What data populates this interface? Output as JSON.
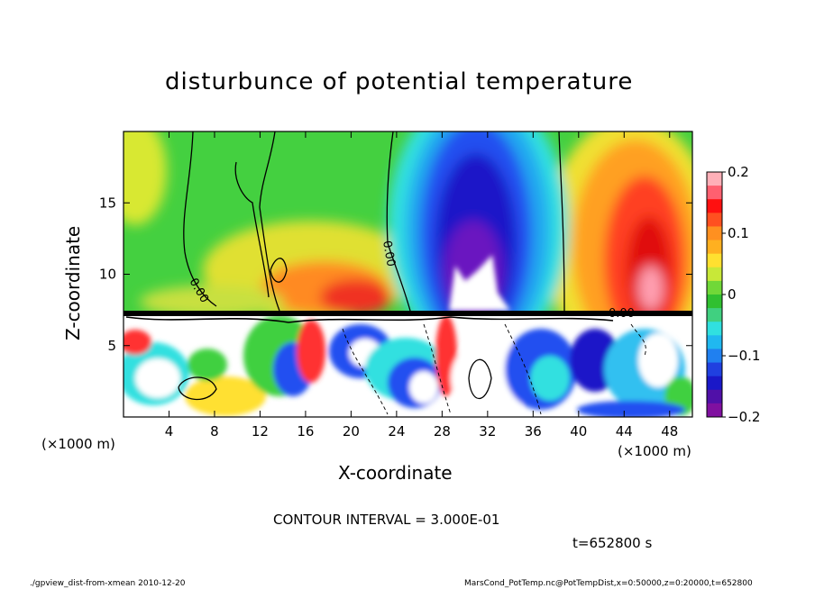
{
  "chart_data": {
    "type": "heatmap",
    "title": "disturbunce of potential temperature",
    "xlabel": "X-coordinate",
    "ylabel": "Z-coordinate",
    "x_unit": "(×1000 m)",
    "z_unit": "(×1000 m)",
    "xlim": [
      0,
      50
    ],
    "zlim": [
      0,
      20
    ],
    "x_ticks": [
      "4",
      "8",
      "12",
      "16",
      "20",
      "24",
      "28",
      "32",
      "36",
      "40",
      "44",
      "48"
    ],
    "z_ticks": [
      "5",
      "10",
      "15"
    ],
    "colorbar": {
      "range": [
        -0.2,
        0.2
      ],
      "tick_labels": [
        "0.2",
        "0.1",
        "0",
        "−0.1",
        "−0.2"
      ]
    },
    "contour_labels": [
      "0.00",
      "0.00",
      "0.00"
    ],
    "contour_interval_text": "CONTOUR INTERVAL = 3.000E-01",
    "time_text": "t=652800 s",
    "grid": false,
    "legend": "right"
  },
  "footer": {
    "left": "./gpview_dist-from-xmean  2010-12-20",
    "right": "MarsCond_PotTemp.nc@PotTempDist,x=0:50000,z=0:20000,t=652800"
  }
}
